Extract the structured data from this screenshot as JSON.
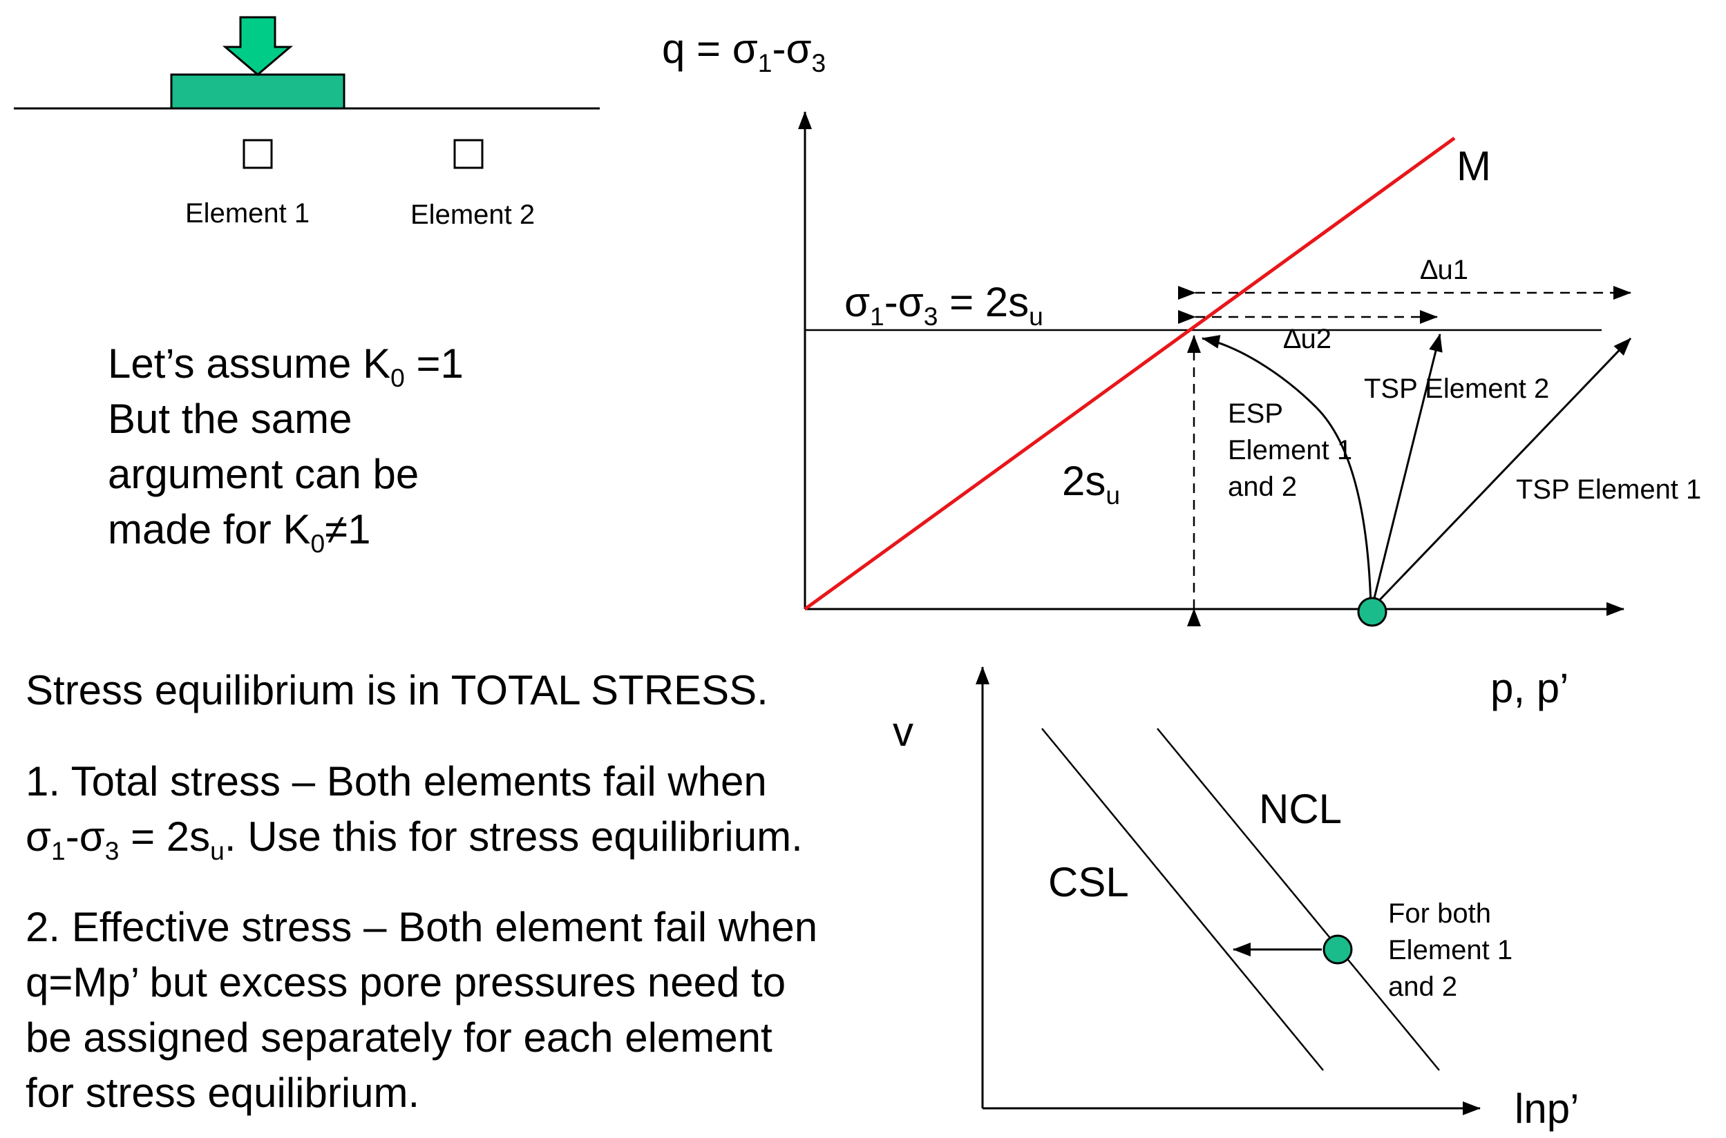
{
  "footing": {
    "element1_label": "Element 1",
    "element2_label": "Element 2",
    "fill_color": "#1abc8c",
    "arrow_color": "#00cc88"
  },
  "assumption": {
    "line1_prefix": "Let’s assume K",
    "line1_sub": "0",
    "line1_suffix": " =1",
    "line2": "But the same",
    "line3": "argument can be",
    "line4_prefix": "made for K",
    "line4_sub": "0",
    "line4_suffix": "≠1"
  },
  "stress_plot": {
    "y_axis_label": {
      "q": "q = σ",
      "s1": "1",
      "mid": "-σ",
      "s3": "3"
    },
    "x_axis_label": "p, p’",
    "failure_line_label": "M",
    "failure_line_color": "#e8161a",
    "undrained_line_label": {
      "s": "σ",
      "s1": "1",
      "mid": "-σ",
      "s3": "3",
      "eq": " = 2s",
      "su": "u"
    },
    "strength_label": {
      "main": "2s",
      "sub": "u"
    },
    "du1_label": "∆u1",
    "du2_label": "∆u2",
    "esp_label": [
      "ESP",
      "Element 1",
      "and 2"
    ],
    "tsp2_label": "TSP Element 2",
    "tsp1_label": "TSP Element 1",
    "start_point_color": "#1abc8c"
  },
  "text_block": {
    "line_a": "Stress equilibrium is in TOTAL STRESS.",
    "p1_line1": "1. Total stress – Both elements fail when",
    "p1_line2": {
      "s": "σ",
      "s1": "1",
      "mid": "-σ",
      "s3": "3",
      "eq": " = 2s",
      "su": "u",
      "rest": ". Use this for stress equilibrium."
    },
    "p2_lines": [
      "2. Effective stress – Both element fail when",
      "q=Mp’ but excess pore pressures need to",
      "be assigned separately for each element",
      "for stress equilibrium."
    ]
  },
  "v_plot": {
    "y_axis_label": "v",
    "x_axis_label": "lnp’",
    "csl_label": "CSL",
    "ncl_label": "NCL",
    "point_label": [
      "For both",
      "Element 1",
      "and 2"
    ],
    "point_color": "#1abc8c"
  }
}
